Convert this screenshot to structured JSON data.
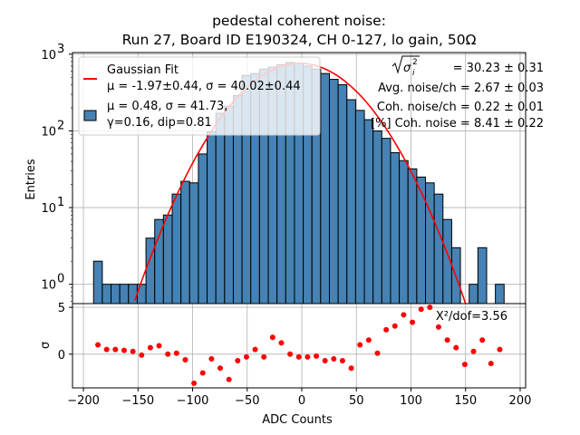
{
  "chart_data": [
    {
      "panel": "top",
      "type": "bar",
      "title_line1": "pedestal coherent noise:",
      "title_line2": "Run 27, Board ID E190324, CH 0-127, lo gain, 50Ω",
      "xlabel": "ADC Counts",
      "ylabel": "Entries",
      "yscale": "log",
      "xlim": [
        -210,
        205
      ],
      "ylim": [
        0.56,
        1050
      ],
      "grid": true,
      "bin_start": -190.7,
      "bin_width": 8.0,
      "counts": [
        2,
        1,
        1,
        1,
        1,
        1,
        4,
        7,
        8,
        15,
        22,
        21,
        50,
        97,
        170,
        210,
        290,
        530,
        560,
        640,
        680,
        730,
        780,
        760,
        700,
        640,
        560,
        470,
        400,
        255,
        185,
        140,
        100,
        80,
        52,
        41,
        32,
        25,
        21,
        15,
        7,
        3,
        0,
        1,
        3,
        0,
        1
      ],
      "ytick_labels": [
        {
          "value": 1,
          "base": "10",
          "exp": "0"
        },
        {
          "value": 10,
          "base": "10",
          "exp": "1"
        },
        {
          "value": 100,
          "base": "10",
          "exp": "2"
        },
        {
          "value": 1000,
          "base": "10",
          "exp": "3"
        }
      ],
      "fit": {
        "type": "gaussian",
        "mu": -1.97,
        "sigma": 40.02,
        "amplitude": 760
      },
      "colors": {
        "bar": "#4682b4",
        "bar_edge": "#000000",
        "fit": "#ff0000"
      },
      "legend": {
        "placement": "upper-left",
        "entries": [
          {
            "label_line1": "Gaussian Fit",
            "label_line2": "μ = -1.97±0.44, σ = 40.02±0.44",
            "marker": "line"
          },
          {
            "label_line1": "μ = 0.48, σ = 41.73,",
            "label_line2": "γ=0.16, dip=0.81",
            "marker": "patch"
          }
        ]
      },
      "annotations": {
        "sigma_i_label": "σ",
        "sigma_i_value": " = 30.23 ± 0.31",
        "avg_noise": "Avg. noise/ch = 2.67 ± 0.03",
        "coh_noise": "Coh. noise/ch = 0.22 ± 0.01",
        "pct_coh_noise": "[%] Coh. noise = 8.41  ± 0.22"
      }
    },
    {
      "panel": "bottom",
      "type": "scatter",
      "xlabel": "ADC Counts",
      "ylabel": "σ",
      "ylim": [
        -3.6,
        5.4
      ],
      "xlim": [
        -210,
        205
      ],
      "grid": true,
      "xticks": [
        -200,
        -150,
        -100,
        -50,
        0,
        50,
        100,
        150,
        200
      ],
      "xtick_labels": [
        "−200",
        "−150",
        "−100",
        "−50",
        "0",
        "50",
        "100",
        "150",
        "200"
      ],
      "yticks": [
        0,
        5
      ],
      "ytick_labels": [
        "0",
        "5"
      ],
      "annotation": "X²/dof=3.56",
      "color": "#ff0000",
      "points": [
        [
          -186.7,
          1.0
        ],
        [
          -178.7,
          0.5
        ],
        [
          -170.7,
          0.5
        ],
        [
          -162.7,
          0.4
        ],
        [
          -154.7,
          0.3
        ],
        [
          -146.7,
          -0.1
        ],
        [
          -138.7,
          0.7
        ],
        [
          -130.7,
          0.9
        ],
        [
          -122.7,
          0.0
        ],
        [
          -114.7,
          0.1
        ],
        [
          -106.7,
          -0.6
        ],
        [
          -98.7,
          -3.1
        ],
        [
          -90.7,
          -2.0
        ],
        [
          -82.7,
          -0.5
        ],
        [
          -74.7,
          -1.5
        ],
        [
          -66.7,
          -2.7
        ],
        [
          -58.7,
          -0.7
        ],
        [
          -50.7,
          -0.3
        ],
        [
          -42.7,
          0.5
        ],
        [
          -34.7,
          -0.3
        ],
        [
          -26.7,
          1.8
        ],
        [
          -18.7,
          1.2
        ],
        [
          -10.7,
          0.0
        ],
        [
          -2.7,
          -0.3
        ],
        [
          5.3,
          -0.3
        ],
        [
          13.3,
          -0.2
        ],
        [
          21.3,
          -0.7
        ],
        [
          29.3,
          -0.5
        ],
        [
          37.3,
          -0.7
        ],
        [
          45.3,
          -1.5
        ],
        [
          53.3,
          1.0
        ],
        [
          61.3,
          1.5
        ],
        [
          69.3,
          0.1
        ],
        [
          77.3,
          2.6
        ],
        [
          85.3,
          3.0
        ],
        [
          93.3,
          4.2
        ],
        [
          101.3,
          3.4
        ],
        [
          109.3,
          4.8
        ],
        [
          117.3,
          5.0
        ],
        [
          125.3,
          2.9
        ],
        [
          133.3,
          1.5
        ],
        [
          141.3,
          0.7
        ],
        [
          149.3,
          -1.1
        ],
        [
          157.3,
          0.3
        ],
        [
          165.3,
          1.5
        ],
        [
          173.3,
          -1.0
        ],
        [
          181.3,
          0.5
        ]
      ]
    }
  ]
}
